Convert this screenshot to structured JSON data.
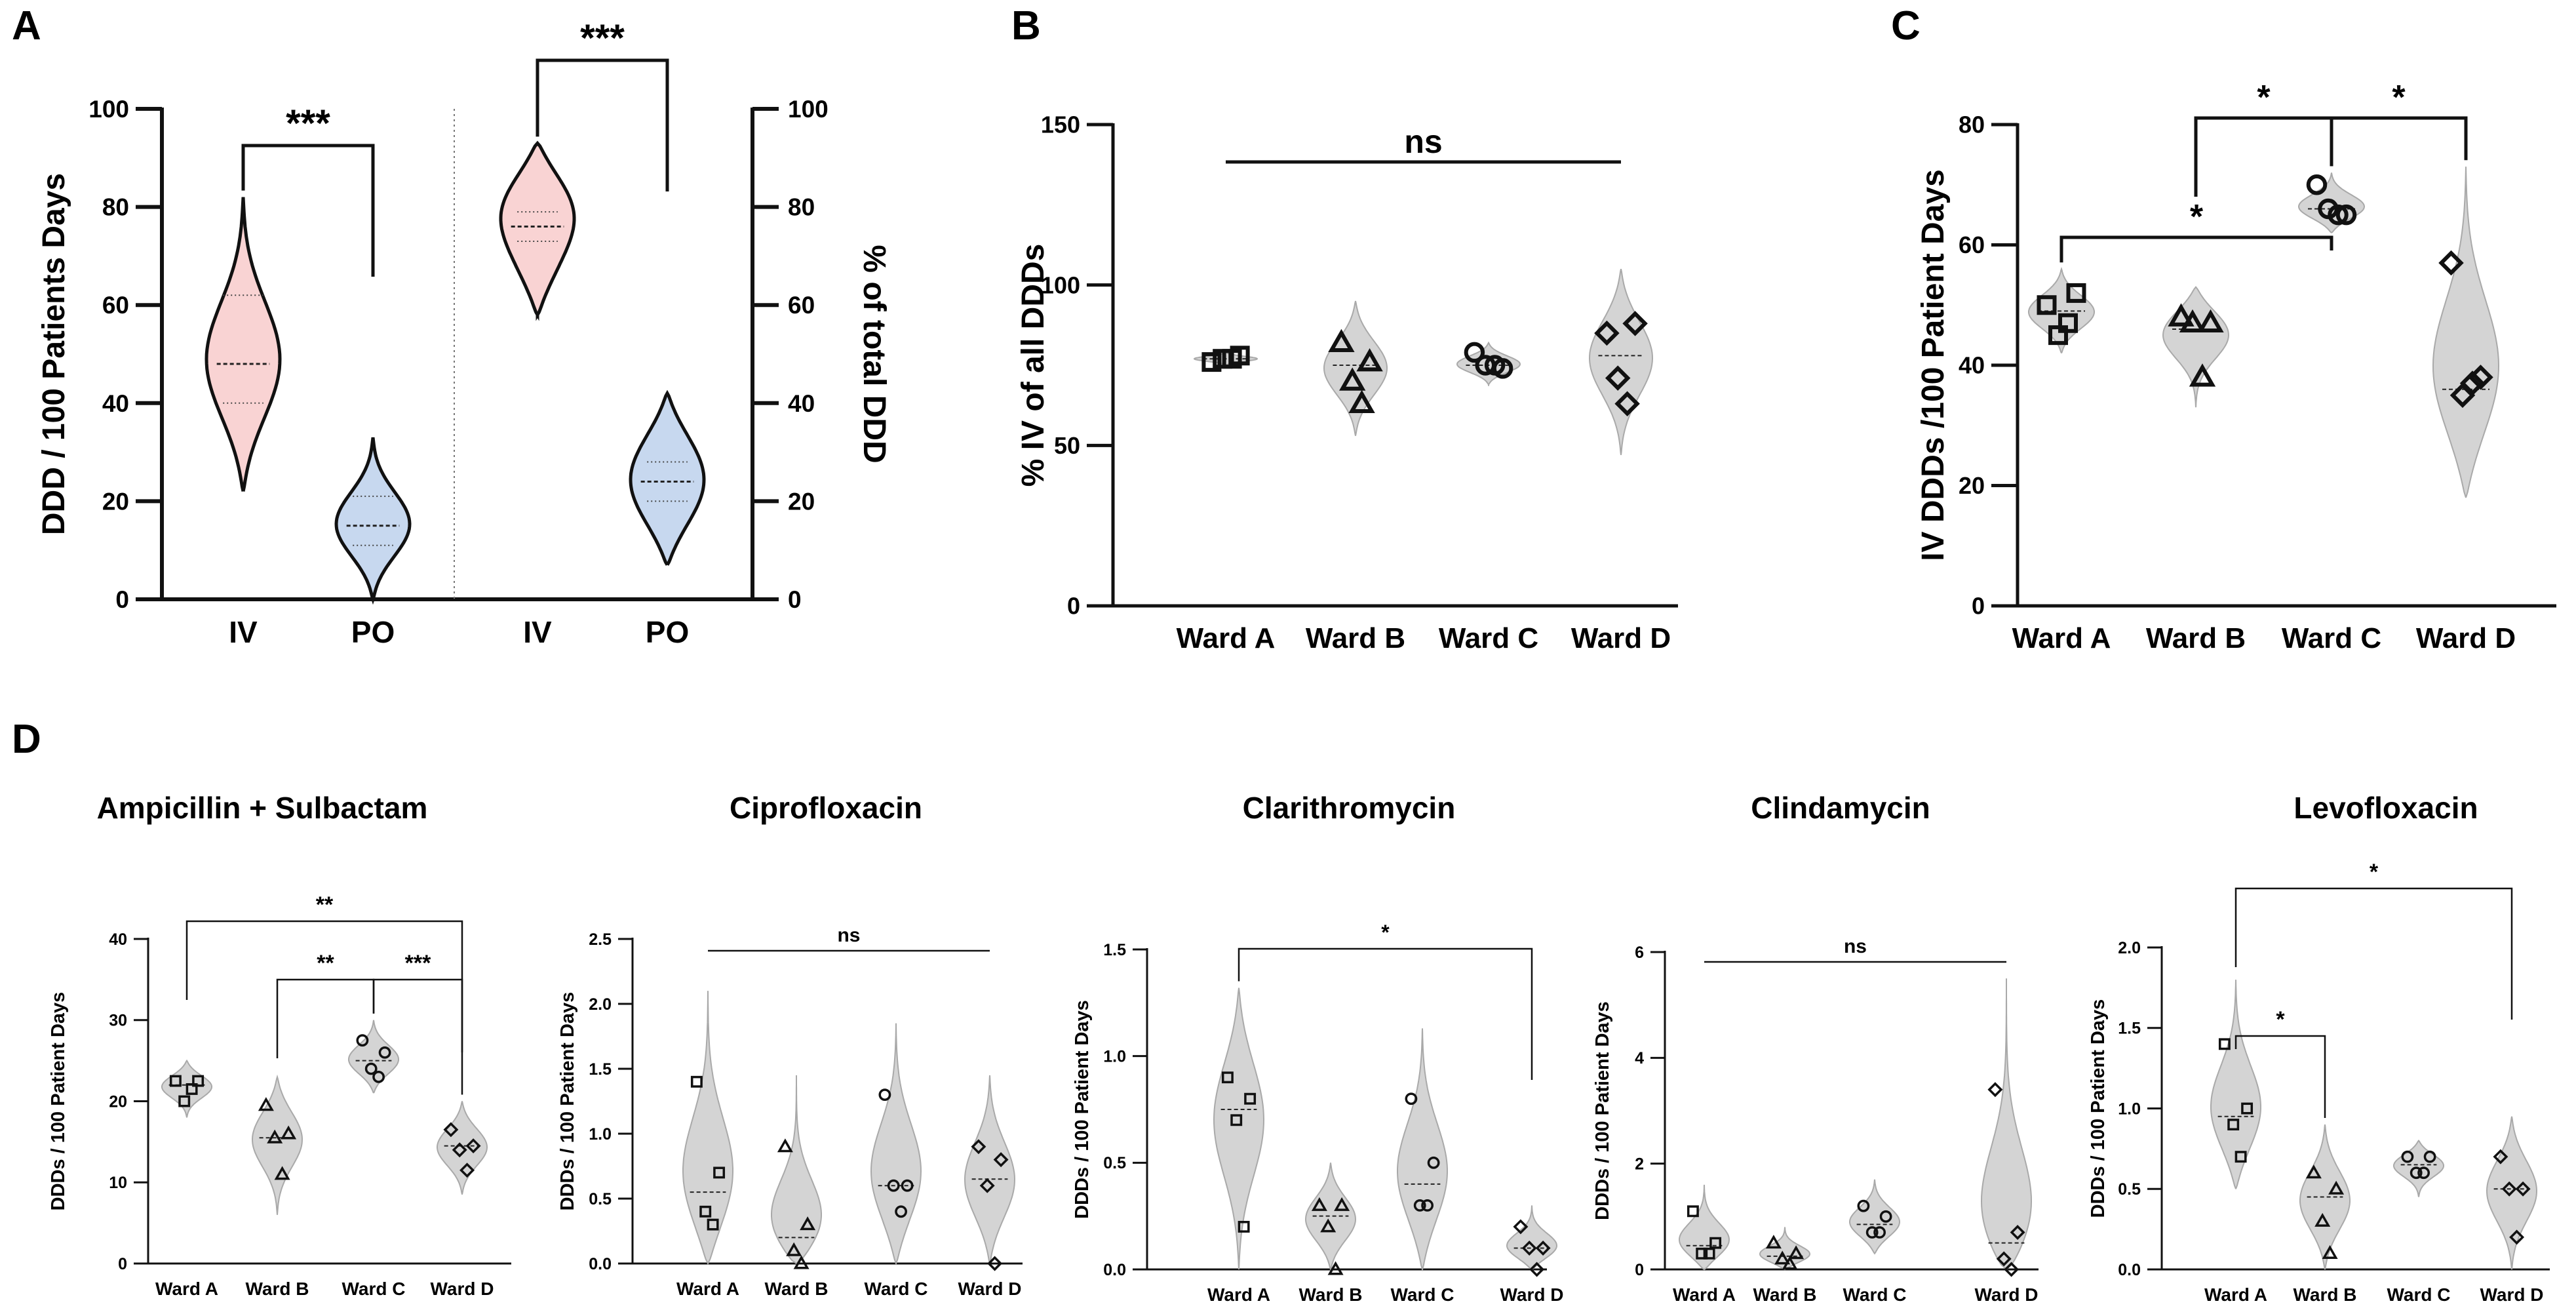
{
  "figure": {
    "colors": {
      "ink": "#111111",
      "violin_gray": "#d4d4d4",
      "violin_gray_edge": "#a9a9a9",
      "violin_pink": "#f9d3d3",
      "violin_blue": "#c7d8ef"
    }
  },
  "chart_data": [
    {
      "id": "A",
      "panel_label": "A",
      "type": "violin",
      "xlabel": "",
      "ylabel": "DDD / 100 Patients Days",
      "ylabel_right": "% of total DDD",
      "ylim": [
        0,
        100
      ],
      "yticks": [
        "0",
        "20",
        "40",
        "60",
        "80",
        "100"
      ],
      "categories": [
        "IV",
        "PO",
        "IV",
        "PO"
      ],
      "series": [
        {
          "name": "IV",
          "axis": "left",
          "fill": "pink",
          "median": 48,
          "q1": 40,
          "q3": 62,
          "min": 22,
          "max": 82,
          "modes": [
            [
              48,
              1.0
            ]
          ]
        },
        {
          "name": "PO",
          "axis": "left",
          "fill": "blue",
          "median": 15,
          "q1": 11,
          "q3": 21,
          "min": 0,
          "max": 33,
          "modes": [
            [
              15,
              1.0
            ]
          ]
        },
        {
          "name": "IV",
          "axis": "right",
          "fill": "pink",
          "median": 76,
          "q1": 73,
          "q3": 79,
          "min": 58,
          "max": 93,
          "modes": [
            [
              78,
              1.0
            ],
            [
              66,
              0.55
            ],
            [
              86,
              0.55
            ]
          ]
        },
        {
          "name": "PO",
          "axis": "right",
          "fill": "blue",
          "median": 24,
          "q1": 20,
          "q3": 28,
          "min": 7,
          "max": 42,
          "modes": [
            [
              24,
              1.0
            ],
            [
              33,
              0.55
            ],
            [
              15,
              0.5
            ]
          ]
        }
      ],
      "brackets": [
        {
          "from": 0,
          "to": 1,
          "label": "***"
        },
        {
          "from": 2,
          "to": 3,
          "label": "***"
        }
      ]
    },
    {
      "id": "B",
      "panel_label": "B",
      "type": "violin",
      "xlabel": "",
      "ylabel": "% IV of all DDDs",
      "ylim": [
        0,
        150
      ],
      "yticks": [
        "0",
        "50",
        "100",
        "150"
      ],
      "categories": [
        "Ward A",
        "Ward B",
        "Ward C",
        "Ward D"
      ],
      "markers": [
        "square",
        "triangle",
        "circle",
        "diamond"
      ],
      "series": [
        {
          "name": "Ward A",
          "values": [
            76,
            78,
            77,
            77
          ],
          "median": 77,
          "min": 75,
          "max": 79
        },
        {
          "name": "Ward B",
          "values": [
            82,
            76,
            70,
            63
          ],
          "median": 75,
          "min": 53,
          "max": 95
        },
        {
          "name": "Ward C",
          "values": [
            79,
            74,
            75,
            75
          ],
          "median": 75,
          "min": 69,
          "max": 82
        },
        {
          "name": "Ward D",
          "values": [
            85,
            88,
            71,
            63
          ],
          "median": 78,
          "min": 47,
          "max": 105
        }
      ],
      "brackets": [
        {
          "from": 0,
          "to": 3,
          "label": "ns",
          "flat": true
        }
      ]
    },
    {
      "id": "C",
      "panel_label": "C",
      "type": "violin",
      "xlabel": "",
      "ylabel": "IV DDDs /100 Patient Days",
      "ylim": [
        0,
        80
      ],
      "yticks": [
        "0",
        "20",
        "40",
        "60",
        "80"
      ],
      "categories": [
        "Ward A",
        "Ward B",
        "Ward C",
        "Ward D"
      ],
      "markers": [
        "square",
        "triangle",
        "circle",
        "diamond"
      ],
      "series": [
        {
          "name": "Ward A",
          "values": [
            50,
            52,
            45,
            47
          ],
          "median": 49,
          "min": 42,
          "max": 56
        },
        {
          "name": "Ward B",
          "values": [
            48,
            47,
            47,
            38
          ],
          "median": 46,
          "min": 33,
          "max": 53
        },
        {
          "name": "Ward C",
          "values": [
            70,
            65,
            66,
            65
          ],
          "median": 66,
          "min": 62,
          "max": 72
        },
        {
          "name": "Ward D",
          "values": [
            57,
            38,
            35,
            37
          ],
          "median": 36,
          "min": 18,
          "max": 73
        }
      ],
      "brackets": [
        {
          "from": 0,
          "to": 2,
          "label": "*"
        },
        {
          "from": 1,
          "to": 2,
          "label": "*"
        },
        {
          "from": 2,
          "to": 3,
          "label": "*"
        }
      ]
    },
    {
      "id": "D1",
      "panel_label": "D",
      "type": "violin",
      "title": "Ampicillin + Sulbactam",
      "xlabel": "",
      "ylabel": "DDDs / 100 Patient Days",
      "ylim": [
        0,
        40
      ],
      "yticks": [
        "0",
        "10",
        "20",
        "30",
        "40"
      ],
      "categories": [
        "Ward A",
        "Ward B",
        "Ward C",
        "Ward D"
      ],
      "markers": [
        "square",
        "triangle",
        "circle",
        "diamond"
      ],
      "series": [
        {
          "name": "Ward A",
          "values": [
            22.5,
            22.5,
            20,
            21.5
          ],
          "median": 22,
          "min": 18,
          "max": 25
        },
        {
          "name": "Ward B",
          "values": [
            19.5,
            16,
            15.5,
            11
          ],
          "median": 15.5,
          "min": 6,
          "max": 23
        },
        {
          "name": "Ward C",
          "values": [
            27.5,
            26,
            24,
            23
          ],
          "median": 25,
          "min": 21,
          "max": 30
        },
        {
          "name": "Ward D",
          "values": [
            16.5,
            14.5,
            14,
            11.5
          ],
          "median": 14.5,
          "min": 8.5,
          "max": 20
        }
      ],
      "brackets": [
        {
          "from": 0,
          "to": 3,
          "label": "**"
        },
        {
          "from": 1,
          "to": 2,
          "label": "**"
        },
        {
          "from": 2,
          "to": 3,
          "label": "***"
        }
      ]
    },
    {
      "id": "D2",
      "type": "violin",
      "title": "Ciprofloxacin",
      "xlabel": "",
      "ylabel": "DDDs / 100 Patient Days",
      "ylim": [
        0,
        2.5
      ],
      "yticks": [
        "0.0",
        "0.5",
        "1.0",
        "1.5",
        "2.0",
        "2.5"
      ],
      "categories": [
        "Ward A",
        "Ward B",
        "Ward C",
        "Ward D"
      ],
      "markers": [
        "square",
        "triangle",
        "circle",
        "diamond"
      ],
      "series": [
        {
          "name": "Ward A",
          "values": [
            1.4,
            0.7,
            0.4,
            0.3
          ],
          "median": 0.55,
          "min": 0.0,
          "max": 2.1
        },
        {
          "name": "Ward B",
          "values": [
            0.9,
            0.3,
            0.1,
            0.0
          ],
          "median": 0.2,
          "min": 0.0,
          "max": 1.45
        },
        {
          "name": "Ward C",
          "values": [
            1.3,
            0.6,
            0.6,
            0.4
          ],
          "median": 0.6,
          "min": 0.0,
          "max": 1.85
        },
        {
          "name": "Ward D",
          "values": [
            0.9,
            0.8,
            0.6,
            0.0
          ],
          "median": 0.65,
          "min": 0.0,
          "max": 1.45
        }
      ],
      "brackets": [
        {
          "from": 0,
          "to": 3,
          "label": "ns",
          "flat": true
        }
      ]
    },
    {
      "id": "D3",
      "type": "violin",
      "title": "Clarithromycin",
      "xlabel": "",
      "ylabel": "DDDs / 100 Patient Days",
      "ylim": [
        0,
        1.5
      ],
      "yticks": [
        "0.0",
        "0.5",
        "1.0",
        "1.5"
      ],
      "categories": [
        "Ward A",
        "Ward B",
        "Ward C",
        "Ward D"
      ],
      "markers": [
        "square",
        "triangle",
        "circle",
        "diamond"
      ],
      "series": [
        {
          "name": "Ward A",
          "values": [
            0.9,
            0.8,
            0.7,
            0.2
          ],
          "median": 0.75,
          "min": 0.0,
          "max": 1.32
        },
        {
          "name": "Ward B",
          "values": [
            0.3,
            0.3,
            0.2,
            0.0
          ],
          "median": 0.25,
          "min": 0.0,
          "max": 0.5
        },
        {
          "name": "Ward C",
          "values": [
            0.8,
            0.5,
            0.3,
            0.3
          ],
          "median": 0.4,
          "min": 0.0,
          "max": 1.13
        },
        {
          "name": "Ward D",
          "values": [
            0.2,
            0.1,
            0.1,
            0.0
          ],
          "median": 0.1,
          "min": 0.0,
          "max": 0.3
        }
      ],
      "brackets": [
        {
          "from": 0,
          "to": 3,
          "label": "*"
        }
      ]
    },
    {
      "id": "D4",
      "type": "violin",
      "title": "Clindamycin",
      "xlabel": "",
      "ylabel": "DDDs / 100 Patient Days",
      "ylim": [
        0,
        6
      ],
      "yticks": [
        "0",
        "2",
        "4",
        "6"
      ],
      "categories": [
        "Ward A",
        "Ward B",
        "Ward C",
        "Ward D"
      ],
      "markers": [
        "square",
        "triangle",
        "circle",
        "diamond"
      ],
      "series": [
        {
          "name": "Ward A",
          "values": [
            1.1,
            0.5,
            0.3,
            0.3
          ],
          "median": 0.45,
          "min": 0.0,
          "max": 1.6
        },
        {
          "name": "Ward B",
          "values": [
            0.5,
            0.3,
            0.2,
            0.1
          ],
          "median": 0.25,
          "min": 0.0,
          "max": 0.8
        },
        {
          "name": "Ward C",
          "values": [
            1.2,
            1.0,
            0.7,
            0.7
          ],
          "median": 0.85,
          "min": 0.3,
          "max": 1.7
        },
        {
          "name": "Ward D",
          "values": [
            3.4,
            0.7,
            0.2,
            0.0
          ],
          "median": 0.5,
          "min": 0.0,
          "max": 5.5
        }
      ],
      "brackets": [
        {
          "from": 0,
          "to": 3,
          "label": "ns",
          "flat": true
        }
      ]
    },
    {
      "id": "D5",
      "type": "violin",
      "title": "Levofloxacin",
      "xlabel": "",
      "ylabel": "DDDs / 100 Patient Days",
      "ylim": [
        0,
        2.0
      ],
      "yticks": [
        "0.0",
        "0.5",
        "1.0",
        "1.5",
        "2.0"
      ],
      "categories": [
        "Ward A",
        "Ward B",
        "Ward C",
        "Ward D"
      ],
      "markers": [
        "square",
        "triangle",
        "circle",
        "diamond"
      ],
      "series": [
        {
          "name": "Ward A",
          "values": [
            1.4,
            1.0,
            0.9,
            0.7
          ],
          "median": 0.95,
          "min": 0.5,
          "max": 1.8
        },
        {
          "name": "Ward B",
          "values": [
            0.6,
            0.5,
            0.3,
            0.1
          ],
          "median": 0.45,
          "min": 0.0,
          "max": 0.9
        },
        {
          "name": "Ward C",
          "values": [
            0.7,
            0.7,
            0.6,
            0.6
          ],
          "median": 0.65,
          "min": 0.45,
          "max": 0.8
        },
        {
          "name": "Ward D",
          "values": [
            0.7,
            0.5,
            0.5,
            0.2
          ],
          "median": 0.5,
          "min": 0.0,
          "max": 0.95
        }
      ],
      "brackets": [
        {
          "from": 0,
          "to": 1,
          "label": "*"
        },
        {
          "from": 0,
          "to": 3,
          "label": "*"
        }
      ]
    }
  ]
}
